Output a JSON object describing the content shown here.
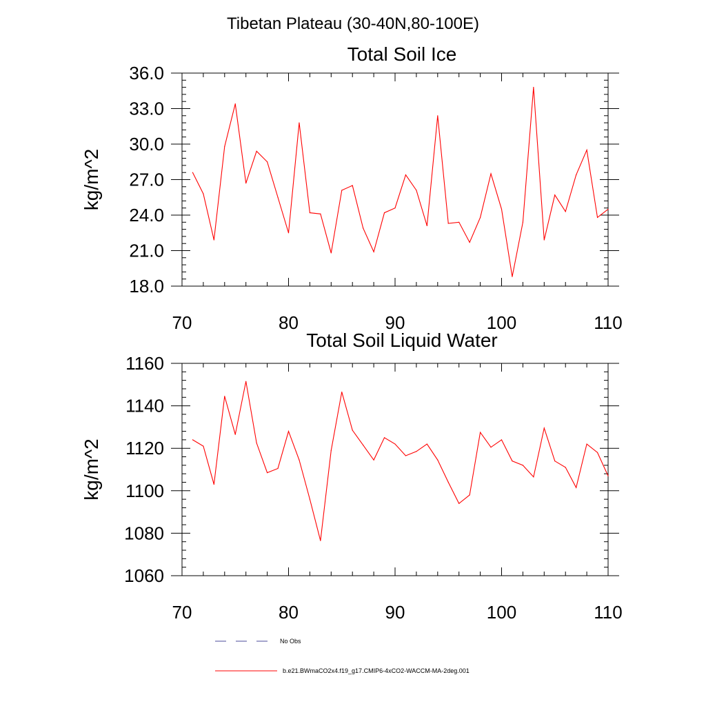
{
  "figure_title": "Tibetan Plateau (30-40N,80-100E)",
  "chart_data": [
    {
      "type": "line",
      "title": "Total Soil Ice",
      "xlabel": "",
      "ylabel": "kg/m^2",
      "xlim": [
        70,
        110
      ],
      "ylim": [
        18,
        36
      ],
      "xticks": [
        70,
        80,
        90,
        100,
        110
      ],
      "xtick_labels": [
        "70",
        "80",
        "90",
        "100",
        "110"
      ],
      "yticks": [
        18,
        21,
        24,
        27,
        30,
        33,
        36
      ],
      "ytick_labels": [
        "18.0",
        "21.0",
        "24.0",
        "27.0",
        "30.0",
        "33.0",
        "36.0"
      ],
      "grid": false,
      "series": [
        {
          "name": "b.e21.BWmaCO2x4.f19_g17.CMIP6-4xCO2-WACCM-MA-2deg.001",
          "color": "#ff0000",
          "x": [
            71,
            72,
            73,
            74,
            75,
            76,
            77,
            78,
            79,
            80,
            81,
            82,
            83,
            84,
            85,
            86,
            87,
            88,
            89,
            90,
            91,
            92,
            93,
            94,
            95,
            96,
            97,
            98,
            99,
            100,
            101,
            102,
            103,
            104,
            105,
            106,
            107,
            108,
            109,
            110
          ],
          "values": [
            27.6,
            25.8,
            21.9,
            29.8,
            33.4,
            26.7,
            29.4,
            28.5,
            25.5,
            22.5,
            31.8,
            24.2,
            24.1,
            20.8,
            26.1,
            26.5,
            22.9,
            20.9,
            24.2,
            24.6,
            27.4,
            26.1,
            23.1,
            32.4,
            23.3,
            23.4,
            21.7,
            23.8,
            27.5,
            24.5,
            18.8,
            23.4,
            34.8,
            21.9,
            25.7,
            24.3,
            27.4,
            29.5,
            23.8,
            24.5
          ]
        }
      ]
    },
    {
      "type": "line",
      "title": "Total Soil Liquid Water",
      "xlabel": "",
      "ylabel": "kg/m^2",
      "xlim": [
        70,
        110
      ],
      "ylim": [
        1060,
        1160
      ],
      "xticks": [
        70,
        80,
        90,
        100,
        110
      ],
      "xtick_labels": [
        "70",
        "80",
        "90",
        "100",
        "110"
      ],
      "yticks": [
        1060,
        1080,
        1100,
        1120,
        1140,
        1160
      ],
      "ytick_labels": [
        "1060",
        "1080",
        "1100",
        "1120",
        "1140",
        "1160"
      ],
      "grid": false,
      "series": [
        {
          "name": "b.e21.BWmaCO2x4.f19_g17.CMIP6-4xCO2-WACCM-MA-2deg.001",
          "color": "#ff0000",
          "x": [
            71,
            72,
            73,
            74,
            75,
            76,
            77,
            78,
            79,
            80,
            81,
            82,
            83,
            84,
            85,
            86,
            87,
            88,
            89,
            90,
            91,
            92,
            93,
            94,
            95,
            96,
            97,
            98,
            99,
            100,
            101,
            102,
            103,
            104,
            105,
            106,
            107,
            108,
            109,
            110
          ],
          "values": [
            1124,
            1121,
            1103,
            1144.5,
            1126.5,
            1151.5,
            1122.5,
            1108.5,
            1110.5,
            1128,
            1114.5,
            1096,
            1076.5,
            1119,
            1146.5,
            1128.5,
            1121.5,
            1114.5,
            1125,
            1122,
            1116.5,
            1118.5,
            1122,
            1114.5,
            1104,
            1094,
            1098,
            1127.5,
            1120.5,
            1124,
            1114,
            1112,
            1106.5,
            1129.5,
            1114,
            1111,
            1101.5,
            1122,
            1118,
            1107
          ]
        }
      ]
    }
  ],
  "legend": {
    "position": "bottom-center",
    "entries": [
      {
        "label": "No Obs",
        "color": "#4a4a9a",
        "style": "dashed"
      },
      {
        "label": "b.e21.BWmaCO2x4.f19_g17.CMIP6-4xCO2-WACCM-MA-2deg.001",
        "color": "#ff0000",
        "style": "solid"
      }
    ]
  }
}
